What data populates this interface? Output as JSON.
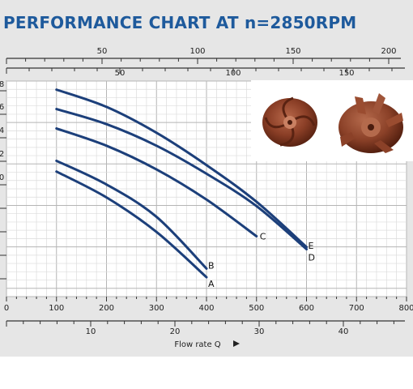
{
  "chart_data": {
    "type": "line",
    "title": "PERFORMANCE CHART AT n=2850RPM",
    "xlabel": "Flow rate Q",
    "x_axis_primary": {
      "ticks": [
        0,
        100,
        200,
        300,
        400,
        500,
        600,
        700,
        800
      ],
      "range": [
        0,
        800
      ]
    },
    "x_axis_top_1": {
      "ticks": [
        50,
        100,
        150,
        200
      ]
    },
    "x_axis_top_2": {
      "ticks": [
        50,
        100,
        150
      ]
    },
    "x_axis_bottom_2": {
      "ticks": [
        10,
        20,
        30,
        40
      ]
    },
    "y_axis_left_partial_labels": [
      "8",
      "6",
      "4",
      "2",
      "0"
    ],
    "grid": true,
    "series": [
      {
        "name": "A",
        "x": [
          100,
          200,
          300,
          400
        ],
        "y": [
          0.58,
          0.46,
          0.3,
          0.09
        ]
      },
      {
        "name": "B",
        "x": [
          100,
          200,
          300,
          400
        ],
        "y": [
          0.63,
          0.52,
          0.37,
          0.13
        ]
      },
      {
        "name": "C",
        "x": [
          100,
          200,
          300,
          400,
          500
        ],
        "y": [
          0.78,
          0.7,
          0.59,
          0.45,
          0.28
        ]
      },
      {
        "name": "D",
        "x": [
          100,
          200,
          300,
          400,
          500,
          600
        ],
        "y": [
          0.87,
          0.8,
          0.7,
          0.57,
          0.42,
          0.22
        ]
      },
      {
        "name": "E",
        "x": [
          100,
          200,
          300,
          400,
          500,
          600
        ],
        "y": [
          0.96,
          0.88,
          0.76,
          0.61,
          0.44,
          0.23
        ]
      }
    ],
    "curve_color": "#1c3f7a"
  },
  "images": [
    {
      "name": "impeller-photo-left"
    },
    {
      "name": "impeller-photo-right"
    }
  ]
}
